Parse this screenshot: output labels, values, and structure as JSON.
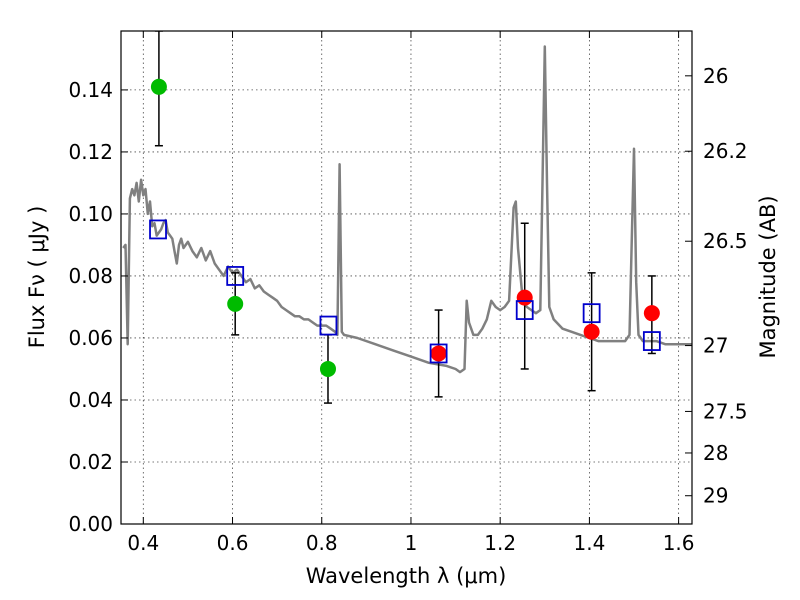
{
  "chart_data": {
    "type": "scatter",
    "xlabel": "Wavelength  λ (μm)",
    "ylabel": "Flux  Fν  ( μJy )",
    "ylabel_right": "Magnitude (AB)",
    "xlim": [
      0.35,
      1.63
    ],
    "ylim": [
      0.0,
      0.159
    ],
    "x_ticks": [
      {
        "value": 0.4,
        "label": "0.4"
      },
      {
        "value": 0.6,
        "label": "0.6"
      },
      {
        "value": 0.8,
        "label": "0.8"
      },
      {
        "value": 1.0,
        "label": "1"
      },
      {
        "value": 1.2,
        "label": "1.2"
      },
      {
        "value": 1.4,
        "label": "1.4"
      },
      {
        "value": 1.6,
        "label": "1.6"
      }
    ],
    "y_ticks": [
      {
        "value": 0.0,
        "label": "0.00"
      },
      {
        "value": 0.02,
        "label": "0.02"
      },
      {
        "value": 0.04,
        "label": "0.04"
      },
      {
        "value": 0.06,
        "label": "0.06"
      },
      {
        "value": 0.08,
        "label": "0.08"
      },
      {
        "value": 0.1,
        "label": "0.10"
      },
      {
        "value": 0.12,
        "label": "0.12"
      },
      {
        "value": 0.14,
        "label": "0.14"
      }
    ],
    "right_ticks": [
      {
        "mag": 26.0,
        "label": "26"
      },
      {
        "mag": 26.2,
        "label": "26.2"
      },
      {
        "mag": 26.5,
        "label": "26.5"
      },
      {
        "mag": 27.0,
        "label": "27"
      },
      {
        "mag": 27.5,
        "label": "27.5"
      },
      {
        "mag": 28.0,
        "label": "28"
      },
      {
        "mag": 29.0,
        "label": "29"
      }
    ],
    "grid": true,
    "series": [
      {
        "kind": "line",
        "color": "#808080",
        "x": [
          0.355,
          0.36,
          0.365,
          0.37,
          0.375,
          0.38,
          0.385,
          0.39,
          0.395,
          0.4,
          0.405,
          0.41,
          0.415,
          0.42,
          0.425,
          0.43,
          0.435,
          0.44,
          0.445,
          0.45,
          0.455,
          0.46,
          0.465,
          0.47,
          0.475,
          0.48,
          0.485,
          0.49,
          0.495,
          0.5,
          0.51,
          0.52,
          0.53,
          0.54,
          0.55,
          0.56,
          0.57,
          0.58,
          0.59,
          0.6,
          0.61,
          0.62,
          0.63,
          0.64,
          0.65,
          0.66,
          0.67,
          0.68,
          0.69,
          0.7,
          0.71,
          0.72,
          0.73,
          0.74,
          0.75,
          0.76,
          0.77,
          0.78,
          0.79,
          0.8,
          0.81,
          0.82,
          0.83,
          0.835,
          0.84,
          0.845,
          0.85,
          0.88,
          0.92,
          0.96,
          1.0,
          1.04,
          1.08,
          1.1,
          1.11,
          1.12,
          1.125,
          1.13,
          1.14,
          1.15,
          1.16,
          1.17,
          1.18,
          1.19,
          1.2,
          1.21,
          1.22,
          1.23,
          1.235,
          1.24,
          1.25,
          1.26,
          1.27,
          1.28,
          1.29,
          1.295,
          1.3,
          1.305,
          1.31,
          1.32,
          1.34,
          1.36,
          1.38,
          1.4,
          1.42,
          1.44,
          1.46,
          1.48,
          1.49,
          1.495,
          1.5,
          1.505,
          1.51,
          1.52,
          1.53,
          1.55,
          1.57,
          1.6,
          1.63
        ],
        "y": [
          0.089,
          0.09,
          0.058,
          0.105,
          0.108,
          0.106,
          0.11,
          0.104,
          0.111,
          0.106,
          0.108,
          0.1,
          0.104,
          0.096,
          0.097,
          0.093,
          0.094,
          0.095,
          0.097,
          0.098,
          0.094,
          0.093,
          0.092,
          0.088,
          0.084,
          0.09,
          0.092,
          0.089,
          0.09,
          0.091,
          0.088,
          0.086,
          0.089,
          0.085,
          0.088,
          0.084,
          0.082,
          0.08,
          0.083,
          0.081,
          0.082,
          0.08,
          0.078,
          0.079,
          0.076,
          0.077,
          0.075,
          0.074,
          0.073,
          0.072,
          0.07,
          0.069,
          0.068,
          0.067,
          0.067,
          0.066,
          0.066,
          0.065,
          0.064,
          0.064,
          0.064,
          0.063,
          0.062,
          0.061,
          0.116,
          0.062,
          0.061,
          0.06,
          0.058,
          0.056,
          0.054,
          0.052,
          0.051,
          0.05,
          0.049,
          0.05,
          0.072,
          0.065,
          0.061,
          0.061,
          0.063,
          0.066,
          0.072,
          0.07,
          0.069,
          0.07,
          0.072,
          0.102,
          0.104,
          0.089,
          0.073,
          0.07,
          0.069,
          0.068,
          0.069,
          0.112,
          0.154,
          0.11,
          0.07,
          0.066,
          0.063,
          0.062,
          0.061,
          0.06,
          0.059,
          0.059,
          0.059,
          0.059,
          0.061,
          0.092,
          0.121,
          0.078,
          0.061,
          0.059,
          0.059,
          0.059,
          0.058,
          0.058,
          0.058
        ]
      },
      {
        "kind": "points",
        "marker": "circle",
        "color": "#00bb00",
        "points": [
          {
            "x": 0.435,
            "y": 0.141,
            "err_low": 0.122,
            "err_high": 0.159
          },
          {
            "x": 0.606,
            "y": 0.071,
            "err_low": 0.061,
            "err_high": 0.081
          },
          {
            "x": 0.814,
            "y": 0.05,
            "err_low": 0.039,
            "err_high": 0.061
          }
        ]
      },
      {
        "kind": "points",
        "marker": "circle",
        "color": "#ff0000",
        "points": [
          {
            "x": 1.062,
            "y": 0.055,
            "err_low": 0.041,
            "err_high": 0.069
          },
          {
            "x": 1.255,
            "y": 0.073,
            "err_low": 0.05,
            "err_high": 0.097
          },
          {
            "x": 1.405,
            "y": 0.062,
            "err_low": 0.043,
            "err_high": 0.081
          },
          {
            "x": 1.54,
            "y": 0.068,
            "err_low": 0.055,
            "err_high": 0.08
          }
        ]
      },
      {
        "kind": "points",
        "marker": "open-square",
        "color": "#0000cc",
        "points": [
          {
            "x": 0.433,
            "y": 0.095
          },
          {
            "x": 0.606,
            "y": 0.08
          },
          {
            "x": 0.815,
            "y": 0.064
          },
          {
            "x": 1.062,
            "y": 0.055
          },
          {
            "x": 1.255,
            "y": 0.069
          },
          {
            "x": 1.405,
            "y": 0.068
          },
          {
            "x": 1.54,
            "y": 0.059
          }
        ]
      }
    ]
  }
}
